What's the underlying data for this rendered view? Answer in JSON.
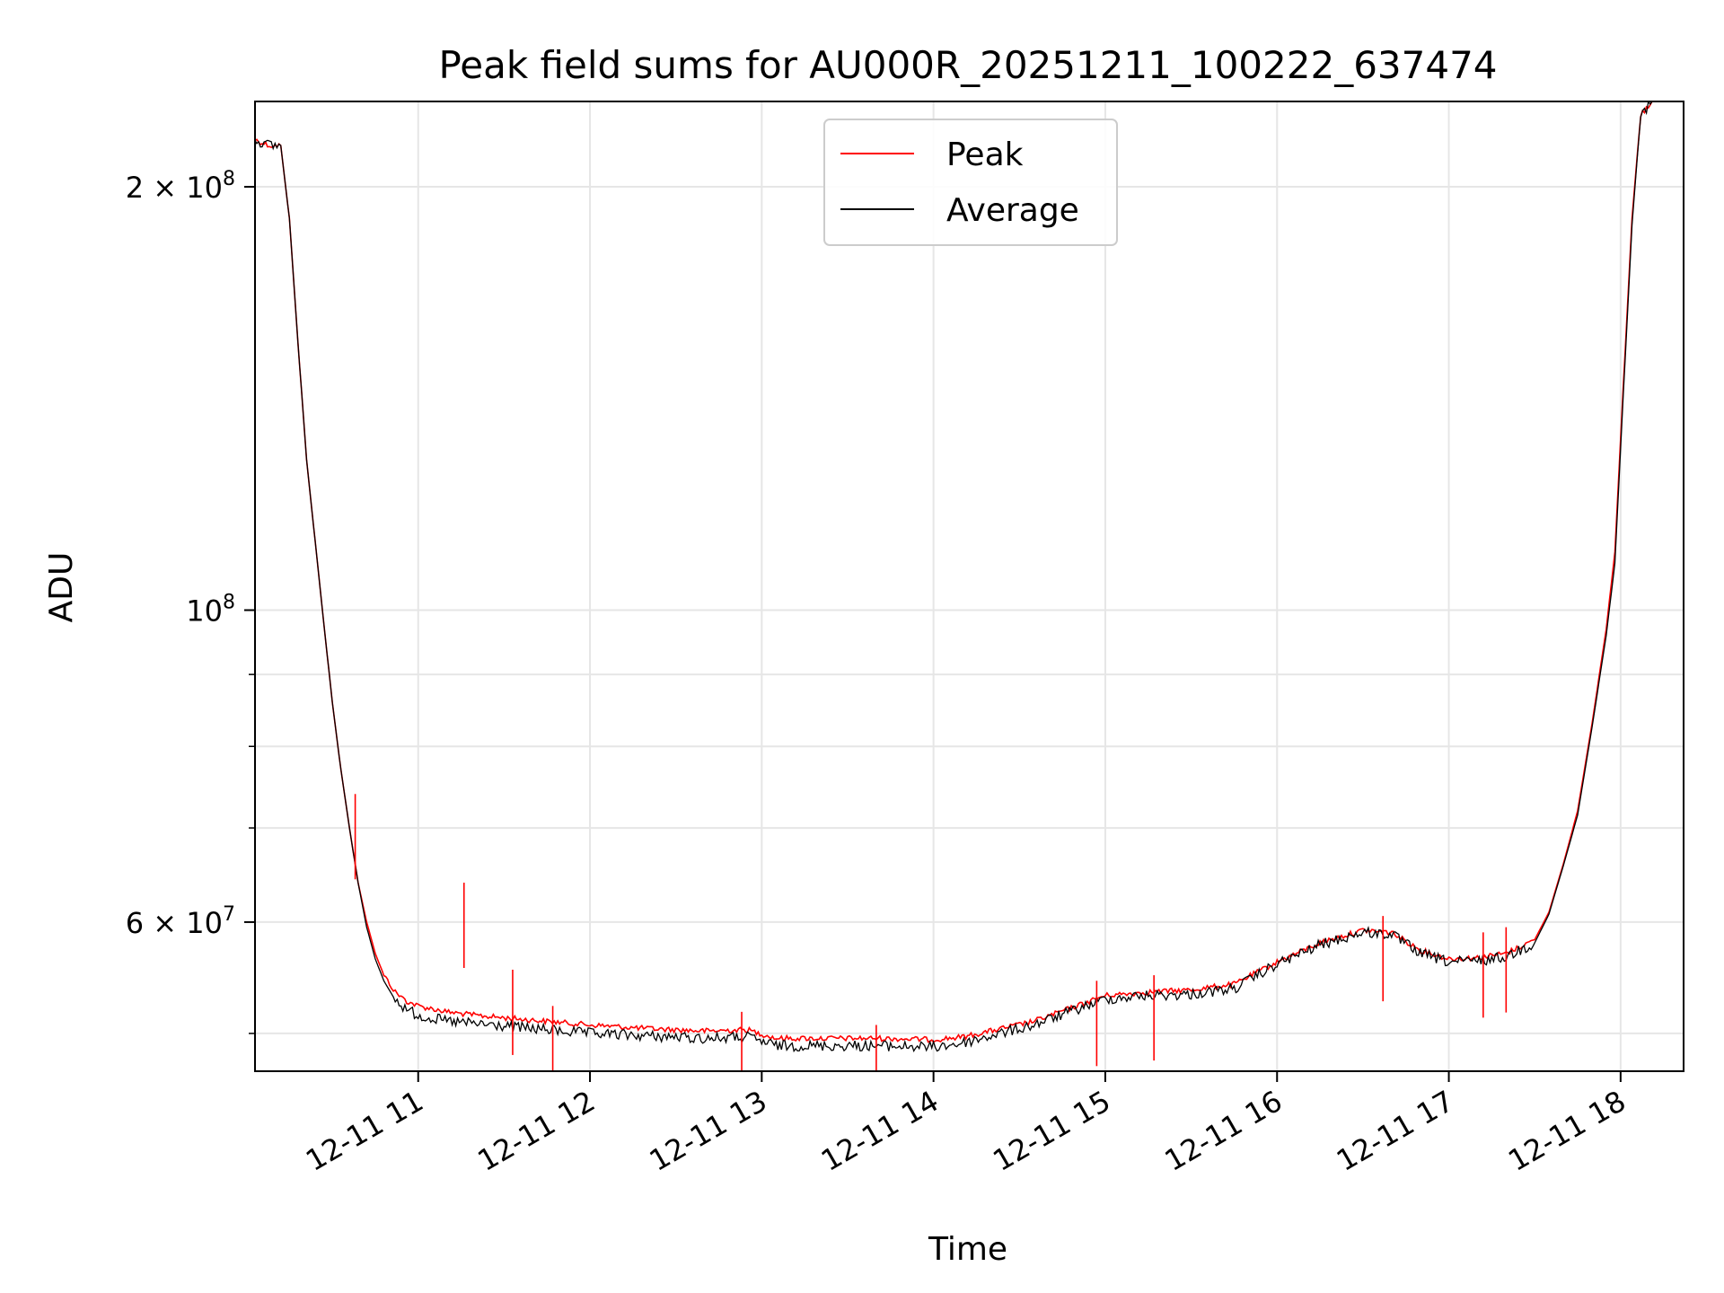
{
  "chart_data": {
    "type": "line",
    "title": "Peak field sums for AU000R_20251211_100222_637474",
    "xlabel": "Time",
    "ylabel": "ADU",
    "x_scale": "time",
    "y_scale": "log",
    "xlim": [
      "2025-12-11 10:03",
      "2025-12-11 18:22"
    ],
    "ylim": [
      47000000,
      230000000
    ],
    "grid": true,
    "legend_position": "upper center",
    "x_ticks": [
      {
        "value": "2025-12-11 11:00",
        "label": "12-11 11"
      },
      {
        "value": "2025-12-11 12:00",
        "label": "12-11 12"
      },
      {
        "value": "2025-12-11 13:00",
        "label": "12-11 13"
      },
      {
        "value": "2025-12-11 14:00",
        "label": "12-11 14"
      },
      {
        "value": "2025-12-11 15:00",
        "label": "12-11 15"
      },
      {
        "value": "2025-12-11 16:00",
        "label": "12-11 16"
      },
      {
        "value": "2025-12-11 17:00",
        "label": "12-11 17"
      },
      {
        "value": "2025-12-11 18:00",
        "label": "12-11 18"
      }
    ],
    "y_major_ticks": [
      {
        "value": 200000000,
        "base": "2 × 10",
        "exp": "8"
      },
      {
        "value": 100000000,
        "base": "10",
        "exp": "8"
      },
      {
        "value": 60000000,
        "base": "6 × 10",
        "exp": "7"
      }
    ],
    "y_minor_ticks": [
      50000000,
      70000000,
      80000000,
      90000000
    ],
    "series": [
      {
        "name": "Peak",
        "color": "#ff0000",
        "x": [
          "2025-12-11 10:03",
          "2025-12-11 10:08",
          "2025-12-11 10:12",
          "2025-12-11 10:15",
          "2025-12-11 10:18",
          "2025-12-11 10:21",
          "2025-12-11 10:24",
          "2025-12-11 10:27",
          "2025-12-11 10:30",
          "2025-12-11 10:33",
          "2025-12-11 10:36",
          "2025-12-11 10:39",
          "2025-12-11 10:42",
          "2025-12-11 10:45",
          "2025-12-11 10:48",
          "2025-12-11 10:52",
          "2025-12-11 10:56",
          "2025-12-11 11:00",
          "2025-12-11 11:10",
          "2025-12-11 11:20",
          "2025-12-11 11:30",
          "2025-12-11 11:45",
          "2025-12-11 12:00",
          "2025-12-11 12:20",
          "2025-12-11 12:40",
          "2025-12-11 12:55",
          "2025-12-11 13:05",
          "2025-12-11 13:20",
          "2025-12-11 13:40",
          "2025-12-11 14:00",
          "2025-12-11 14:10",
          "2025-12-11 14:20",
          "2025-12-11 14:35",
          "2025-12-11 14:50",
          "2025-12-11 15:00",
          "2025-12-11 15:15",
          "2025-12-11 15:30",
          "2025-12-11 15:45",
          "2025-12-11 16:00",
          "2025-12-11 16:15",
          "2025-12-11 16:30",
          "2025-12-11 16:40",
          "2025-12-11 16:50",
          "2025-12-11 17:00",
          "2025-12-11 17:10",
          "2025-12-11 17:20",
          "2025-12-11 17:30",
          "2025-12-11 17:35",
          "2025-12-11 17:40",
          "2025-12-11 17:45",
          "2025-12-11 17:50",
          "2025-12-11 17:55",
          "2025-12-11 17:58",
          "2025-12-11 18:01",
          "2025-12-11 18:04",
          "2025-12-11 18:07",
          "2025-12-11 18:11"
        ],
        "values": [
          216000000,
          214000000,
          214000000,
          190000000,
          155000000,
          128000000,
          112000000,
          98000000,
          86000000,
          77000000,
          70000000,
          64000000,
          60000000,
          57000000,
          55000000,
          53500000,
          52700000,
          52300000,
          51800000,
          51500000,
          51300000,
          51000000,
          50700000,
          50400000,
          50200000,
          50300000,
          49600000,
          49600000,
          49600000,
          49500000,
          49700000,
          50200000,
          51000000,
          52300000,
          53200000,
          53500000,
          53700000,
          54200000,
          56200000,
          58000000,
          59200000,
          59000000,
          57300000,
          56500000,
          56600000,
          57000000,
          58300000,
          61000000,
          66000000,
          72000000,
          83000000,
          97000000,
          110000000,
          145000000,
          190000000,
          225000000,
          230000000
        ]
      },
      {
        "name": "Average",
        "color": "#000000",
        "x": [
          "2025-12-11 10:03",
          "2025-12-11 10:08",
          "2025-12-11 10:12",
          "2025-12-11 10:15",
          "2025-12-11 10:18",
          "2025-12-11 10:21",
          "2025-12-11 10:24",
          "2025-12-11 10:27",
          "2025-12-11 10:30",
          "2025-12-11 10:33",
          "2025-12-11 10:36",
          "2025-12-11 10:39",
          "2025-12-11 10:42",
          "2025-12-11 10:45",
          "2025-12-11 10:48",
          "2025-12-11 10:52",
          "2025-12-11 10:56",
          "2025-12-11 11:00",
          "2025-12-11 11:10",
          "2025-12-11 11:20",
          "2025-12-11 11:30",
          "2025-12-11 11:45",
          "2025-12-11 12:00",
          "2025-12-11 12:20",
          "2025-12-11 12:40",
          "2025-12-11 12:55",
          "2025-12-11 13:05",
          "2025-12-11 13:20",
          "2025-12-11 13:40",
          "2025-12-11 14:00",
          "2025-12-11 14:10",
          "2025-12-11 14:20",
          "2025-12-11 14:35",
          "2025-12-11 14:50",
          "2025-12-11 15:00",
          "2025-12-11 15:15",
          "2025-12-11 15:30",
          "2025-12-11 15:45",
          "2025-12-11 16:00",
          "2025-12-11 16:15",
          "2025-12-11 16:30",
          "2025-12-11 16:40",
          "2025-12-11 16:50",
          "2025-12-11 17:00",
          "2025-12-11 17:10",
          "2025-12-11 17:20",
          "2025-12-11 17:30",
          "2025-12-11 17:35",
          "2025-12-11 17:40",
          "2025-12-11 17:45",
          "2025-12-11 17:50",
          "2025-12-11 17:55",
          "2025-12-11 17:58",
          "2025-12-11 18:01",
          "2025-12-11 18:04",
          "2025-12-11 18:07",
          "2025-12-11 18:11"
        ],
        "values": [
          216000000,
          214000000,
          214000000,
          190000000,
          155000000,
          128000000,
          112000000,
          98000000,
          86000000,
          77000000,
          70000000,
          64000000,
          59500000,
          56500000,
          54500000,
          52800000,
          52000000,
          51500000,
          51000000,
          50800000,
          50600000,
          50300000,
          50000000,
          49800000,
          49600000,
          49700000,
          49000000,
          49000000,
          49000000,
          48900000,
          49200000,
          49800000,
          50700000,
          52000000,
          52900000,
          53200000,
          53300000,
          53800000,
          56000000,
          57800000,
          59000000,
          58800000,
          57000000,
          56200000,
          56300000,
          56700000,
          58000000,
          60800000,
          65800000,
          71500000,
          82500000,
          96000000,
          108000000,
          143000000,
          188000000,
          225000000,
          230000000
        ]
      }
    ],
    "annotations_spikes_peak": [
      {
        "x": "2025-12-11 10:38",
        "value": 74000000
      },
      {
        "x": "2025-12-11 11:16",
        "value": 64000000
      },
      {
        "x": "2025-12-11 11:33",
        "value": 55500000
      },
      {
        "x": "2025-12-11 11:47",
        "value": 52300000
      },
      {
        "x": "2025-12-11 12:53",
        "value": 51800000
      },
      {
        "x": "2025-12-11 13:40",
        "value": 50700000
      },
      {
        "x": "2025-12-11 14:57",
        "value": 54500000
      },
      {
        "x": "2025-12-11 15:17",
        "value": 55000000
      },
      {
        "x": "2025-12-11 16:37",
        "value": 60600000
      },
      {
        "x": "2025-12-11 17:12",
        "value": 59000000
      },
      {
        "x": "2025-12-11 17:20",
        "value": 59500000
      }
    ]
  }
}
